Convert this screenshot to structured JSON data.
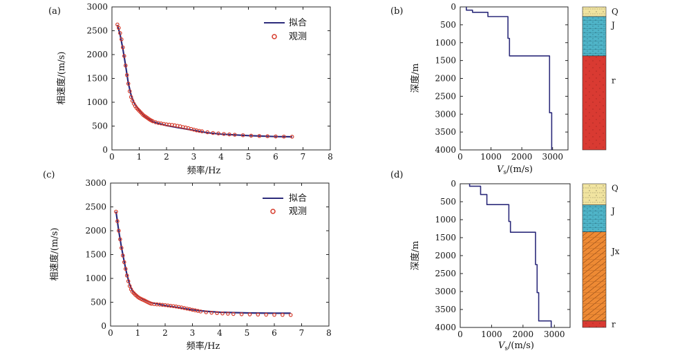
{
  "colors": {
    "fit_line": "#2b2a7a",
    "observed": "#d63a2a",
    "strata": {
      "Q": "#f1e4a0",
      "J": "#4fb4c8",
      "r": "#d93a32",
      "Jx": "#ee8a34"
    }
  },
  "chart_data": [
    {
      "id": "a",
      "type": "line",
      "panel_label": "(a)",
      "xlabel": "频率/Hz",
      "ylabel": "相速度/(m/s)",
      "xlim": [
        0,
        8
      ],
      "ylim": [
        0,
        3000
      ],
      "xticks": [
        "0",
        "1",
        "2",
        "3",
        "4",
        "5",
        "6",
        "7",
        "8"
      ],
      "yticks": [
        "0",
        "500",
        "1000",
        "1500",
        "2000",
        "2500",
        "3000"
      ],
      "legend_position": "top-right",
      "series": [
        {
          "name": "拟合",
          "style": "line",
          "x": [
            0.2,
            0.3,
            0.4,
            0.5,
            0.6,
            0.7,
            0.8,
            1.0,
            1.2,
            1.5,
            2.0,
            2.5,
            3.0,
            3.5,
            4.0,
            5.0,
            6.0,
            6.6
          ],
          "y": [
            2620,
            2420,
            2120,
            1770,
            1400,
            1150,
            1000,
            830,
            700,
            590,
            510,
            460,
            410,
            360,
            330,
            300,
            280,
            275
          ]
        },
        {
          "name": "观测",
          "style": "markers",
          "x": [
            0.2,
            0.25,
            0.3,
            0.35,
            0.4,
            0.45,
            0.5,
            0.55,
            0.6,
            0.65,
            0.7,
            0.75,
            0.8,
            0.85,
            0.9,
            0.95,
            1.0,
            1.05,
            1.1,
            1.15,
            1.2,
            1.25,
            1.3,
            1.35,
            1.4,
            1.45,
            1.5,
            1.6,
            1.7,
            1.8,
            1.9,
            2.0,
            2.1,
            2.2,
            2.3,
            2.4,
            2.5,
            2.6,
            2.7,
            2.8,
            2.9,
            3.0,
            3.1,
            3.2,
            3.3,
            3.5,
            3.7,
            3.9,
            4.1,
            4.3,
            4.5,
            4.8,
            5.1,
            5.4,
            5.7,
            6.0,
            6.3,
            6.6
          ],
          "y": [
            2630,
            2560,
            2450,
            2320,
            2150,
            1970,
            1770,
            1570,
            1390,
            1230,
            1110,
            1030,
            970,
            920,
            880,
            850,
            820,
            790,
            760,
            730,
            710,
            690,
            670,
            650,
            630,
            615,
            600,
            580,
            565,
            555,
            545,
            535,
            530,
            525,
            515,
            505,
            495,
            480,
            470,
            455,
            440,
            425,
            410,
            400,
            390,
            370,
            355,
            345,
            335,
            325,
            318,
            308,
            298,
            292,
            287,
            282,
            279,
            276
          ]
        }
      ]
    },
    {
      "id": "b",
      "type": "line",
      "panel_label": "(b)",
      "xlabel_main": "V",
      "xlabel_sub": "s",
      "xlabel_tail": "/(m/s)",
      "ylabel": "深度/m",
      "xlim": [
        0,
        3500
      ],
      "ylim": [
        0,
        4000
      ],
      "xticks": [
        "0",
        "1000",
        "2000",
        "3000"
      ],
      "yticks": [
        "0",
        "500",
        "1000",
        "1500",
        "2000",
        "2500",
        "3000",
        "3500",
        "4000"
      ],
      "series": [
        {
          "name": "",
          "style": "step",
          "x": [
            200,
            200,
            400,
            400,
            900,
            900,
            1550,
            1550,
            1600,
            1600,
            2900,
            2900,
            2970,
            2970
          ],
          "y": [
            0,
            90,
            90,
            150,
            150,
            270,
            270,
            880,
            880,
            1370,
            1370,
            2960,
            2960,
            4000
          ]
        }
      ],
      "strata": [
        {
          "label": "Q",
          "top": 0,
          "bottom": 270,
          "color": "Q"
        },
        {
          "label": "J",
          "top": 270,
          "bottom": 1370,
          "color": "J"
        },
        {
          "label": "r",
          "top": 1370,
          "bottom": 4000,
          "color": "r"
        }
      ]
    },
    {
      "id": "c",
      "type": "line",
      "panel_label": "(c)",
      "xlabel": "频率/Hz",
      "ylabel": "相速度/(m/s)",
      "xlim": [
        0,
        8
      ],
      "ylim": [
        0,
        3000
      ],
      "xticks": [
        "0",
        "1",
        "2",
        "3",
        "4",
        "5",
        "6",
        "7",
        "8"
      ],
      "yticks": [
        "0",
        "500",
        "1000",
        "1500",
        "2000",
        "2500",
        "3000"
      ],
      "legend_position": "top-right",
      "series": [
        {
          "name": "拟合",
          "style": "line",
          "x": [
            0.2,
            0.3,
            0.4,
            0.5,
            0.6,
            0.7,
            0.8,
            1.0,
            1.2,
            1.5,
            2.0,
            2.5,
            3.0,
            3.5,
            4.0,
            5.0,
            6.0,
            6.6
          ],
          "y": [
            2400,
            2000,
            1650,
            1350,
            1080,
            870,
            740,
            630,
            560,
            490,
            430,
            385,
            340,
            310,
            290,
            275,
            270,
            270
          ]
        },
        {
          "name": "观测",
          "style": "markers",
          "x": [
            0.2,
            0.25,
            0.3,
            0.35,
            0.4,
            0.45,
            0.5,
            0.55,
            0.6,
            0.65,
            0.7,
            0.75,
            0.8,
            0.85,
            0.9,
            0.95,
            1.0,
            1.05,
            1.1,
            1.15,
            1.2,
            1.25,
            1.3,
            1.35,
            1.4,
            1.45,
            1.5,
            1.6,
            1.7,
            1.8,
            1.9,
            2.0,
            2.1,
            2.2,
            2.3,
            2.4,
            2.5,
            2.6,
            2.7,
            2.8,
            2.9,
            3.0,
            3.1,
            3.2,
            3.3,
            3.5,
            3.7,
            3.9,
            4.1,
            4.3,
            4.5,
            4.8,
            5.1,
            5.4,
            5.7,
            6.0,
            6.3,
            6.6
          ],
          "y": [
            2400,
            2200,
            2000,
            1820,
            1640,
            1480,
            1340,
            1200,
            1060,
            940,
            840,
            770,
            720,
            690,
            660,
            635,
            610,
            590,
            575,
            560,
            548,
            535,
            520,
            505,
            490,
            478,
            468,
            460,
            455,
            450,
            445,
            440,
            432,
            425,
            418,
            410,
            400,
            390,
            378,
            366,
            354,
            342,
            330,
            318,
            306,
            290,
            280,
            272,
            265,
            259,
            254,
            248,
            244,
            241,
            238,
            236,
            234,
            232
          ]
        }
      ]
    },
    {
      "id": "d",
      "type": "line",
      "panel_label": "(d)",
      "xlabel_main": "V",
      "xlabel_sub": "s",
      "xlabel_tail": "/(m/s)",
      "ylabel": "深度/m",
      "xlim": [
        0,
        3500
      ],
      "ylim": [
        0,
        4000
      ],
      "xticks": [
        "0",
        "1000",
        "2000",
        "3000"
      ],
      "yticks": [
        "0",
        "500",
        "1000",
        "1500",
        "2000",
        "2500",
        "3000",
        "3500",
        "4000"
      ],
      "series": [
        {
          "name": "",
          "style": "step",
          "x": [
            300,
            300,
            650,
            650,
            850,
            850,
            1550,
            1550,
            1600,
            1600,
            2400,
            2400,
            2450,
            2450,
            2500,
            2500,
            2900,
            2900
          ],
          "y": [
            0,
            70,
            70,
            300,
            300,
            580,
            580,
            1050,
            1050,
            1350,
            1350,
            2250,
            2250,
            3030,
            3030,
            3820,
            3820,
            4000
          ]
        }
      ],
      "strata": [
        {
          "label": "Q",
          "top": 0,
          "bottom": 590,
          "color": "Q"
        },
        {
          "label": "J",
          "top": 590,
          "bottom": 1340,
          "color": "J"
        },
        {
          "label": "Jx",
          "top": 1340,
          "bottom": 3820,
          "color": "Jx"
        },
        {
          "label": "r",
          "top": 3820,
          "bottom": 4000,
          "color": "r"
        }
      ]
    }
  ]
}
